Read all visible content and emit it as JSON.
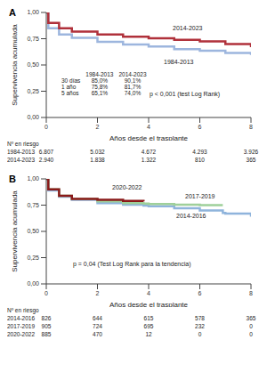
{
  "chart_data": [
    {
      "type": "line",
      "panel": "A",
      "xlabel": "Años desde el trasplante",
      "ylabel": "Supervivencia acumulada",
      "x": [
        0,
        0.08,
        0.5,
        1,
        2,
        3,
        4,
        5,
        6,
        7,
        8
      ],
      "series": [
        {
          "name": "1984-2013",
          "color": "#9db6de",
          "line_style": "step",
          "values": [
            1,
            0.85,
            0.79,
            0.758,
            0.72,
            0.695,
            0.675,
            0.651,
            0.635,
            0.615,
            0.595
          ]
        },
        {
          "name": "2014-2023",
          "color": "#b0313b",
          "line_style": "step",
          "values": [
            1,
            0.901,
            0.85,
            0.817,
            0.79,
            0.77,
            0.755,
            0.74,
            0.725,
            0.7,
            0.67
          ]
        }
      ],
      "xlim": [
        0,
        8
      ],
      "xticks": [
        0,
        2,
        4,
        6,
        8
      ],
      "ylim": [
        0,
        1
      ],
      "yticks": [
        {
          "value": 0,
          "label": "0,00"
        },
        {
          "value": 0.25,
          "label": "0,25"
        },
        {
          "value": 0.5,
          "label": "0,50"
        },
        {
          "value": 0.75,
          "label": "0,75"
        },
        {
          "value": 1,
          "label": "1,00"
        }
      ],
      "grid": false,
      "annotation": "p < 0,001 (test Log Rank)",
      "summary_table": {
        "columns": [
          "1984-2013",
          "2014-2023"
        ],
        "rows": [
          {
            "label": "30 días",
            "values": [
              "85,0%",
              "90,1%"
            ]
          },
          {
            "label": "1 año",
            "values": [
              "75,8%",
              "81,7%"
            ]
          },
          {
            "label": "5 años",
            "values": [
              "65,1%",
              "74,0%"
            ]
          }
        ]
      },
      "at_risk": {
        "title": "Nº en riesgo",
        "rows": [
          {
            "name": "1984-2013",
            "values": [
              6807,
              5032,
              4672,
              4293,
              3926
            ],
            "value_labels": [
              "6.807",
              "5.032",
              "4.672",
              "4.293",
              "3.926"
            ]
          },
          {
            "name": "2014-2023",
            "values": [
              2940,
              1838,
              1322,
              810,
              365
            ],
            "value_labels": [
              "2.940",
              "1.838",
              "1.322",
              "810",
              "365"
            ]
          }
        ]
      }
    },
    {
      "type": "line",
      "panel": "B",
      "xlabel": "Años desde el trasplante",
      "ylabel": "Supervivencia acumulada",
      "x": [
        0,
        0.08,
        0.5,
        1,
        2,
        3,
        3.8,
        4,
        5,
        6,
        6.9,
        7,
        8
      ],
      "series": [
        {
          "name": "2014-2016",
          "color": "#8fb4dc",
          "line_style": "step",
          "values": [
            1,
            0.89,
            0.83,
            0.8,
            0.77,
            0.755,
            0.745,
            0.74,
            0.72,
            0.7,
            0.675,
            0.67,
            0.64
          ]
        },
        {
          "name": "2017-2019",
          "color": "#9fd09a",
          "line_style": "step",
          "values": [
            1,
            0.9,
            0.84,
            0.81,
            0.785,
            0.77,
            0.765,
            0.76,
            0.755,
            0.75,
            0.75,
            null,
            null
          ]
        },
        {
          "name": "2020-2022",
          "color": "#8b1a1a",
          "line_style": "step",
          "values": [
            1,
            0.9,
            0.84,
            0.81,
            0.8,
            0.79,
            0.785,
            null,
            null,
            null,
            null,
            null,
            null
          ]
        }
      ],
      "xlim": [
        0,
        8
      ],
      "xticks": [
        0,
        2,
        4,
        6,
        8
      ],
      "ylim": [
        0,
        1
      ],
      "yticks": [
        {
          "value": 0,
          "label": "0,00"
        },
        {
          "value": 0.25,
          "label": "0,25"
        },
        {
          "value": 0.5,
          "label": "0,50"
        },
        {
          "value": 0.75,
          "label": "0,75"
        },
        {
          "value": 1,
          "label": "1,00"
        }
      ],
      "grid": false,
      "annotation": "p = 0,04 (Test Log Rank para la tendencia)",
      "at_risk": {
        "title": "Nº en riesgo",
        "rows": [
          {
            "name": "2014-2016",
            "values": [
              826,
              644,
              615,
              578,
              365
            ]
          },
          {
            "name": "2017-2019",
            "values": [
              905,
              724,
              695,
              232,
              0
            ]
          },
          {
            "name": "2020-2022",
            "values": [
              885,
              470,
              12,
              0,
              0
            ]
          }
        ]
      }
    }
  ]
}
